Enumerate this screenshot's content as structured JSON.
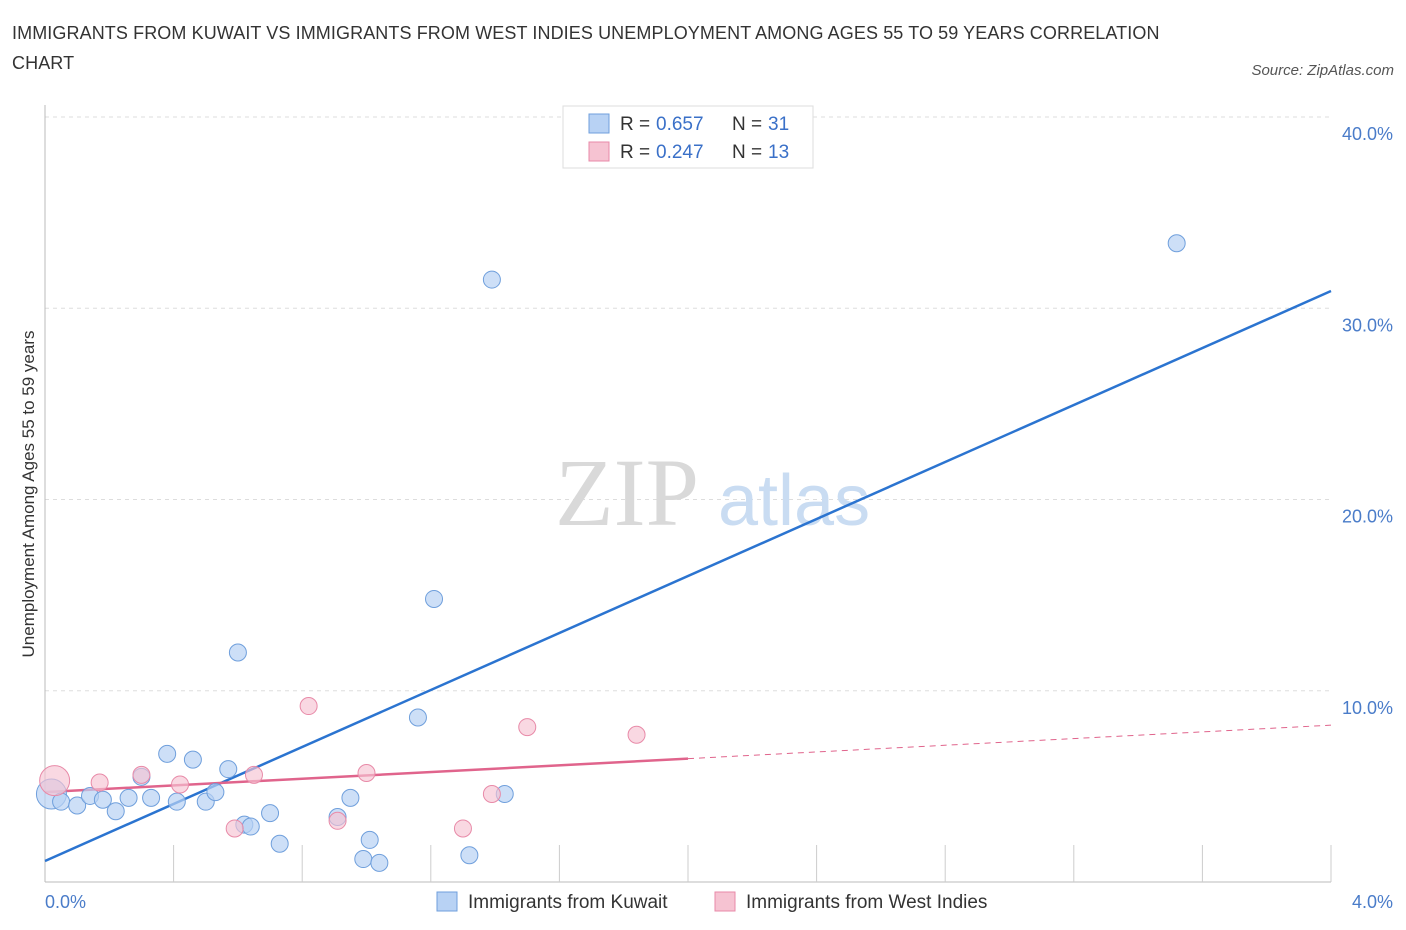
{
  "header": {
    "title": "IMMIGRANTS FROM KUWAIT VS IMMIGRANTS FROM WEST INDIES UNEMPLOYMENT AMONG AGES 55 TO 59 YEARS CORRELATION CHART",
    "source": "Source: ZipAtlas.com"
  },
  "watermark": {
    "zip": "ZIP",
    "atlas": "atlas"
  },
  "legend": {
    "r_label": "R = ",
    "n_label": "N = ",
    "kuwait": {
      "r": "0.657",
      "n": "31"
    },
    "west_indies": {
      "r": "0.247",
      "n": "13"
    }
  },
  "colors": {
    "kuwait_fill": "#b8d2f4",
    "kuwait_stroke": "#6f9fdc",
    "kuwait_line": "#2b74d0",
    "wi_fill": "#f6c3d2",
    "wi_stroke": "#e88aa8",
    "wi_line": "#e0648c",
    "grid": "#dddddd",
    "tick_text": "#4a7cc9"
  },
  "chart_data": {
    "type": "scatter",
    "title": "IMMIGRANTS FROM KUWAIT VS IMMIGRANTS FROM WEST INDIES UNEMPLOYMENT AMONG AGES 55 TO 59 YEARS CORRELATION CHART",
    "xlabel": "",
    "ylabel": "Unemployment Among Ages 55 to 59 years",
    "xlim": [
      0,
      4
    ],
    "ylim": [
      0,
      40
    ],
    "x_tick_labels": [
      "0.0%",
      "4.0%"
    ],
    "y_ticks": [
      10,
      20,
      30,
      40
    ],
    "y_tick_labels": [
      "10.0%",
      "20.0%",
      "30.0%",
      "40.0%"
    ],
    "series": [
      {
        "name": "Immigrants from Kuwait",
        "r": 0.657,
        "n": 31,
        "points": [
          [
            0.02,
            4.6
          ],
          [
            0.05,
            4.2
          ],
          [
            0.1,
            4.0
          ],
          [
            0.14,
            4.5
          ],
          [
            0.18,
            4.3
          ],
          [
            0.22,
            3.7
          ],
          [
            0.26,
            4.4
          ],
          [
            0.3,
            5.5
          ],
          [
            0.33,
            4.4
          ],
          [
            0.38,
            6.7
          ],
          [
            0.41,
            4.2
          ],
          [
            0.46,
            6.4
          ],
          [
            0.5,
            4.2
          ],
          [
            0.53,
            4.7
          ],
          [
            0.57,
            5.9
          ],
          [
            0.6,
            12.0
          ],
          [
            0.62,
            3.0
          ],
          [
            0.64,
            2.9
          ],
          [
            0.7,
            3.6
          ],
          [
            0.73,
            2.0
          ],
          [
            0.91,
            3.4
          ],
          [
            0.95,
            4.4
          ],
          [
            0.99,
            1.2
          ],
          [
            1.01,
            2.2
          ],
          [
            1.04,
            1.0
          ],
          [
            1.16,
            8.6
          ],
          [
            1.21,
            14.8
          ],
          [
            1.32,
            1.4
          ],
          [
            1.39,
            31.5
          ],
          [
            1.43,
            4.6
          ],
          [
            3.52,
            33.4
          ]
        ],
        "trend": {
          "x": [
            0,
            4
          ],
          "y": [
            1.1,
            30.9
          ]
        }
      },
      {
        "name": "Immigrants from West Indies",
        "r": 0.247,
        "n": 13,
        "points": [
          [
            0.03,
            5.3
          ],
          [
            0.17,
            5.2
          ],
          [
            0.3,
            5.6
          ],
          [
            0.42,
            5.1
          ],
          [
            0.59,
            2.8
          ],
          [
            0.65,
            5.6
          ],
          [
            0.82,
            9.2
          ],
          [
            0.91,
            3.2
          ],
          [
            1.0,
            5.7
          ],
          [
            1.3,
            2.8
          ],
          [
            1.39,
            4.6
          ],
          [
            1.5,
            8.1
          ],
          [
            1.84,
            7.7
          ]
        ],
        "trend": {
          "x": [
            0,
            4
          ],
          "y": [
            4.7,
            8.2
          ],
          "solid_until_x": 2.0
        }
      }
    ],
    "bottom_legend": [
      "Immigrants from Kuwait",
      "Immigrants from West Indies"
    ],
    "grid": true
  }
}
